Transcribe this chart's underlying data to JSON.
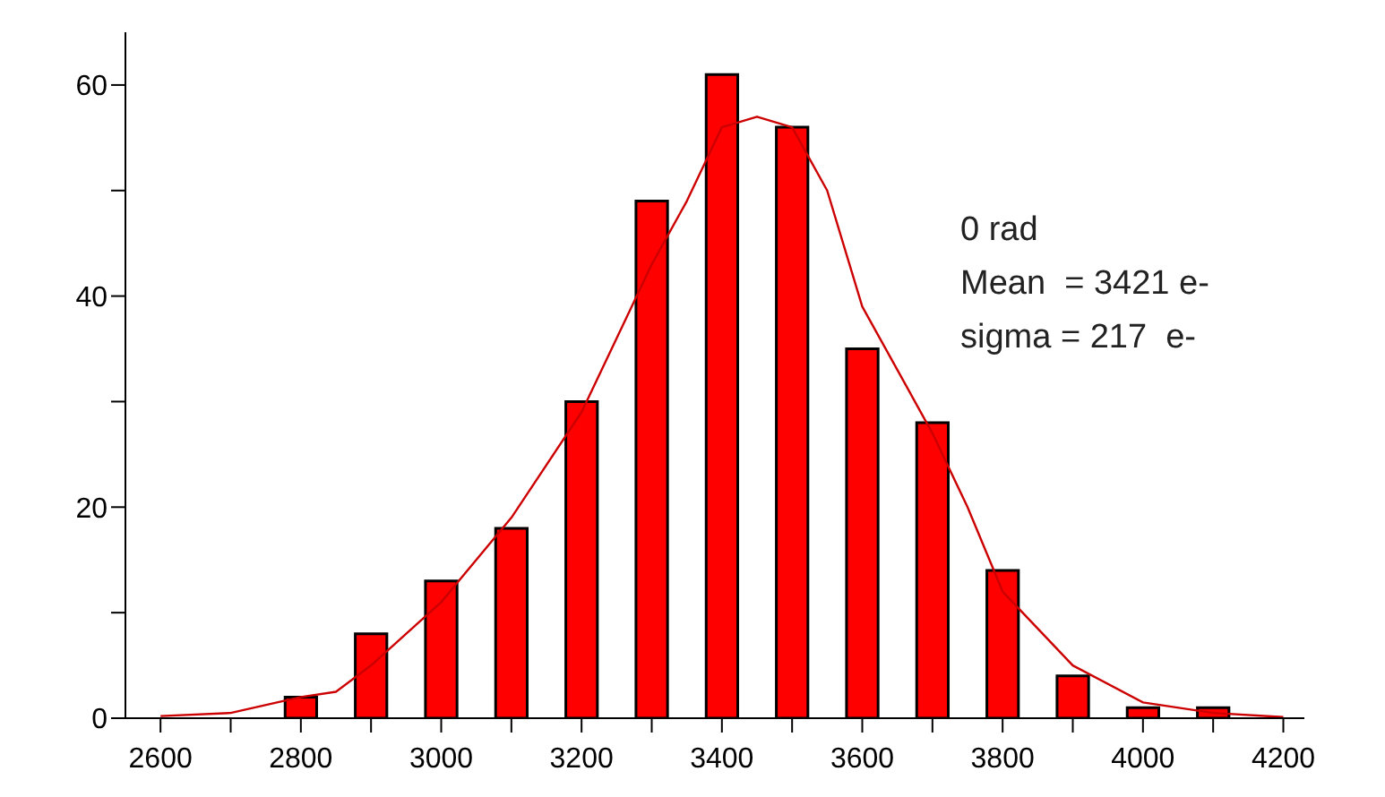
{
  "chart_data": {
    "type": "histogram",
    "bins": [
      2750,
      2850,
      2950,
      3050,
      3150,
      3250,
      3350,
      3450,
      3550,
      3650,
      3750,
      3850,
      3950,
      4050,
      4150
    ],
    "values": [
      2,
      8,
      13,
      18,
      30,
      49,
      61,
      56,
      35,
      28,
      14,
      4,
      1,
      1
    ],
    "color": "#ff0000",
    "series": [
      {
        "type": "line",
        "color": "#cc0000",
        "x": [
          2600,
          2700,
          2800,
          2850,
          2900,
          3000,
          3100,
          3200,
          3300,
          3350,
          3400,
          3450,
          3500,
          3550,
          3600,
          3700,
          3750,
          3800,
          3900,
          4000,
          4100,
          4200
        ],
        "values": [
          0.2,
          0.5,
          2,
          2.5,
          5,
          11,
          19,
          29,
          43,
          49,
          56,
          57,
          56,
          50,
          39,
          27,
          20,
          12,
          5,
          1.5,
          0.5,
          0.1
        ]
      }
    ],
    "xlim": [
      2550,
      4230
    ],
    "xticks": [
      2600,
      {
        "value": 2700,
        "label": null
      },
      2800,
      {
        "value": 2900,
        "label": null
      },
      3000,
      {
        "value": 3100,
        "label": null
      },
      3200,
      {
        "value": 3300,
        "label": null
      },
      3400,
      {
        "value": 3500,
        "label": null
      },
      3600,
      {
        "value": 3700,
        "label": null
      },
      3800,
      {
        "value": 3900,
        "label": null
      },
      4000,
      {
        "value": 4100,
        "label": null
      },
      4200
    ],
    "ylim": [
      0,
      65
    ],
    "yticks": [
      0,
      {
        "value": 10,
        "label": null
      },
      20,
      {
        "value": 30,
        "label": null
      },
      40,
      {
        "value": 50,
        "label": null
      },
      60
    ],
    "annotations": [
      "0 rad",
      "Mean  = 3421 e-",
      "sigma = 217  e-"
    ],
    "grid": false
  }
}
